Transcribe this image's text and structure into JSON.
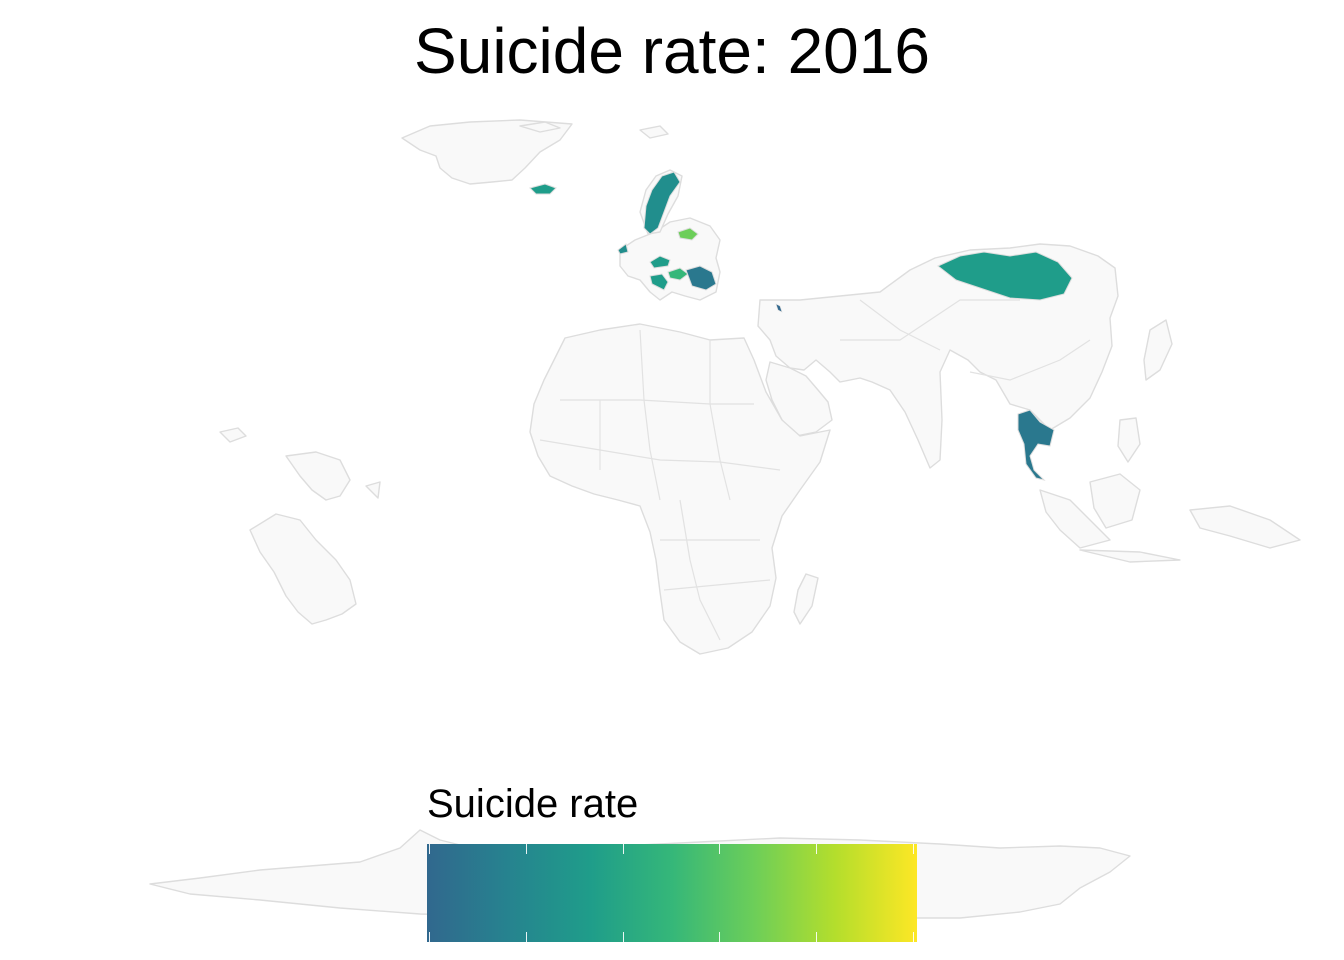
{
  "title": "Suicide rate:  2016",
  "legend": {
    "title": "Suicide rate",
    "gradient": [
      "#31688e",
      "#26838f",
      "#1f9d8a",
      "#35b779",
      "#6cce59",
      "#b4de2c",
      "#fde725"
    ],
    "tick_count": 6
  },
  "colors": {
    "background": "#ffffff",
    "no_data_land": "#f9f9f9",
    "border": "#dddddd"
  },
  "highlighted_regions": [
    {
      "name": "Iceland",
      "color": "#1f9d8a"
    },
    {
      "name": "Sweden",
      "color": "#218e8d"
    },
    {
      "name": "Lithuania",
      "color": "#6cce59"
    },
    {
      "name": "Ireland",
      "color": "#218e8d"
    },
    {
      "name": "Austria",
      "color": "#1f9d8a"
    },
    {
      "name": "Hungary",
      "color": "#35b779"
    },
    {
      "name": "Romania",
      "color": "#2a788e"
    },
    {
      "name": "Croatia",
      "color": "#1f9d8a"
    },
    {
      "name": "Cyprus",
      "color": "#31688e"
    },
    {
      "name": "Mongolia",
      "color": "#1f9d8a"
    },
    {
      "name": "Thailand",
      "color": "#2a788e"
    }
  ]
}
